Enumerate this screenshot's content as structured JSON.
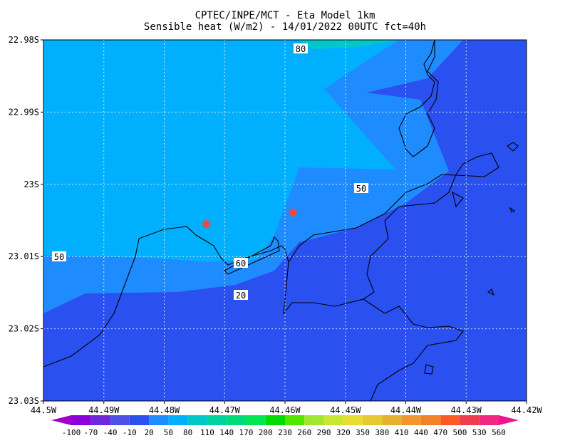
{
  "title": [
    "CPTEC/INPE/MCT -  Eta Model 1km",
    "Sensible heat (W/m2) - 14/01/2022 00UTC fct=40h"
  ],
  "chart_data": {
    "type": "contour-map",
    "xlim": [
      -44.5,
      -44.42
    ],
    "xticks": [
      {
        "value": -44.5,
        "label": "44.5W"
      },
      {
        "value": -44.49,
        "label": "44.49W"
      },
      {
        "value": -44.48,
        "label": "44.48W"
      },
      {
        "value": -44.47,
        "label": "44.47W"
      },
      {
        "value": -44.46,
        "label": "44.46W"
      },
      {
        "value": -44.45,
        "label": "44.45W"
      },
      {
        "value": -44.44,
        "label": "44.44W"
      },
      {
        "value": -44.43,
        "label": "44.43W"
      },
      {
        "value": -44.42,
        "label": "44.42W"
      }
    ],
    "ylim": [
      -23.03,
      -22.98
    ],
    "yticks": [
      {
        "value": -22.98,
        "label": "22.98S"
      },
      {
        "value": -22.99,
        "label": "22.99S"
      },
      {
        "value": -23,
        "label": "23S"
      },
      {
        "value": -23.01,
        "label": "23.01S"
      },
      {
        "value": -23.02,
        "label": "23.02S"
      },
      {
        "value": -23.03,
        "label": "23.03S"
      }
    ],
    "grid": true,
    "colorbar": {
      "levels": [
        -100,
        -70,
        -40,
        -10,
        20,
        50,
        80,
        110,
        140,
        170,
        200,
        230,
        260,
        290,
        320,
        350,
        380,
        410,
        440,
        470,
        500,
        530,
        560
      ],
      "colors": [
        "#a000c8",
        "#8c00dc",
        "#6e28dc",
        "#5050e6",
        "#2a50f0",
        "#1e8cff",
        "#00b0ff",
        "#00c8c8",
        "#00d2a0",
        "#00dc78",
        "#00e650",
        "#00dc00",
        "#50e600",
        "#a0e632",
        "#c8e632",
        "#e6dc32",
        "#e6c832",
        "#e6af2d",
        "#f0962d",
        "#f08228",
        "#fa5a28",
        "#f03c50",
        "#f02882",
        "#f0148c"
      ]
    },
    "contour_labels": [
      80,
      50,
      50,
      60,
      20
    ],
    "points": {
      "x": [
        -44.473,
        -44.4587
      ],
      "y": [
        -23.0055,
        -23.0039
      ],
      "color": "#f04848"
    }
  }
}
